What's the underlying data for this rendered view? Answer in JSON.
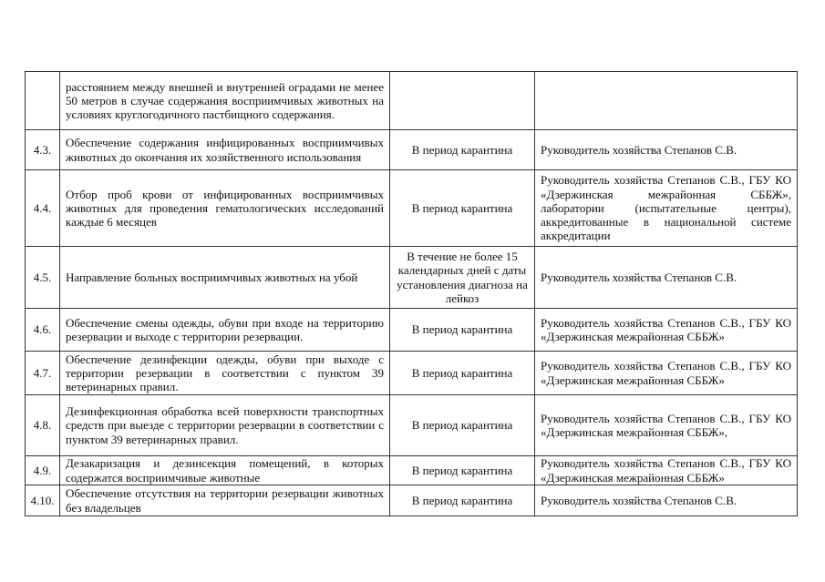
{
  "rows": [
    {
      "num": "",
      "desc": "расстоянием между внешней и внутренней оградами не менее 50 метров в случае содержания восприимчивых животных на условиях круглогодичного пастбищного содержания.",
      "term": "",
      "resp": ""
    },
    {
      "num": "4.3.",
      "desc": "Обеспечение содержания инфицированных восприимчивых животных до окончания их хозяйственного использования",
      "term": "В период карантина",
      "resp": "Руководитель хозяйства Степанов С.В."
    },
    {
      "num": "4.4.",
      "desc": "Отбор проб крови от инфицированных восприимчивых животных для проведения гематологических исследований каждые 6 месяцев",
      "term": "В период карантина",
      "resp": "Руководитель хозяйства Степанов С.В., ГБУ КО «Дзержинская межрайонная СББЖ», лаборатории (испытательные центры), аккредитованные в национальной системе аккредитации"
    },
    {
      "num": "4.5.",
      "desc": "Направление больных восприимчивых животных на убой",
      "term": "В течение не более 15 календарных дней с даты установления диагноза на лейкоз",
      "resp": "Руководитель хозяйства Степанов С.В."
    },
    {
      "num": "4.6.",
      "desc": "Обеспечение смены одежды, обуви при входе на территорию резервации и выходе с территории резервации.",
      "term": "В период карантина",
      "resp": "Руководитель хозяйства Степанов С.В., ГБУ КО «Дзержинская межрайонная СББЖ»"
    },
    {
      "num": "4.7.",
      "desc": "Обеспечение дезинфекции одежды, обуви при выходе с территории резервации в соответствии с пунктом 39 ветеринарных правил.",
      "term": "В период карантина",
      "resp": "Руководитель хозяйства Степанов С.В., ГБУ КО «Дзержинская межрайонная СББЖ»"
    },
    {
      "num": "4.8.",
      "desc": "Дезинфекционная обработка всей поверхности транспортных средств при выезде с территории резервации в соответствии с пунктом 39 ветеринарных правил.",
      "term": "В период карантина",
      "resp": "Руководитель хозяйства Степанов С.В., ГБУ КО «Дзержинская межрайонная СББЖ»,"
    },
    {
      "num": "4.9.",
      "desc": "Дезакаризация и дезинсекция помещений, в которых содержатся восприимчивые животные",
      "term": "В период карантина",
      "resp": "Руководитель хозяйства Степанов С.В., ГБУ КО «Дзержинская межрайонная СББЖ»"
    },
    {
      "num": "4.10.",
      "desc": "Обеспечение отсутствия на территории резервации животных без владельцев",
      "term": "В период карантина",
      "resp": "Руководитель хозяйства Степанов С.В."
    }
  ]
}
